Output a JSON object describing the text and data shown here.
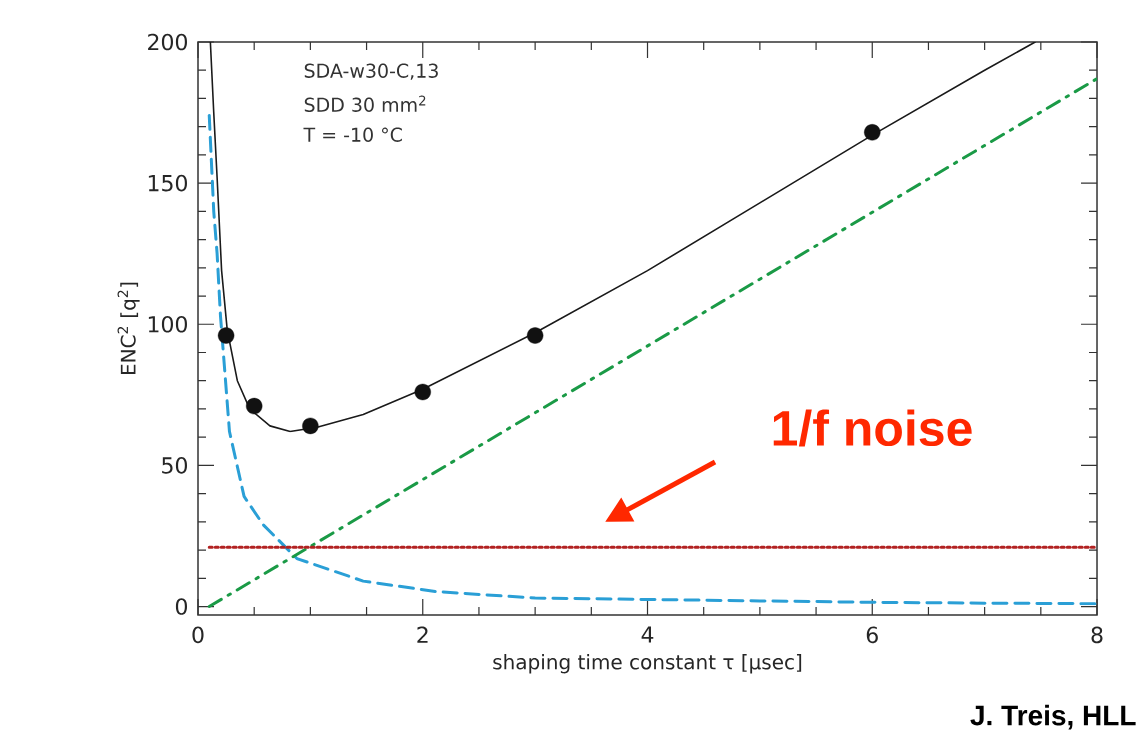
{
  "chart_data": {
    "type": "line",
    "xlabel": "shaping time constant τ [µsec]",
    "ylabel": "ENC$^{2}$ [q$^{2}$]",
    "xlim": [
      0,
      8
    ],
    "ylim": [
      -3,
      200
    ],
    "xticks": [
      0,
      2,
      4,
      6,
      8
    ],
    "yticks": [
      0,
      50,
      100,
      150,
      200
    ],
    "series": [
      {
        "color": "#1a1a1a",
        "line_style": "solid",
        "marker": "none",
        "x": [
          0.11,
          0.14,
          0.17,
          0.21,
          0.26,
          0.35,
          0.46,
          0.64,
          0.82,
          1.06,
          1.47,
          2,
          3,
          4,
          5,
          6,
          7,
          7.45
        ],
        "values": [
          200,
          175,
          152,
          119,
          98,
          80,
          70,
          64,
          62,
          63.5,
          68,
          77,
          97,
          119,
          143,
          167,
          190,
          200
        ]
      },
      {
        "color": "#2a9fd6",
        "line_style": "dashed",
        "marker": "none",
        "x": [
          0.1,
          0.14,
          0.17,
          0.2,
          0.28,
          0.41,
          0.58,
          0.88,
          1.47,
          2.12,
          3,
          4,
          5,
          6,
          7,
          8
        ],
        "values": [
          174,
          140,
          125,
          103,
          62,
          39,
          29,
          17,
          9,
          5.3,
          3,
          2.5,
          2,
          1.5,
          1.2,
          1
        ]
      },
      {
        "color": "#1a9a46",
        "line_style": "dashdotted",
        "marker": "none",
        "x": [
          0.1,
          8
        ],
        "values": [
          0,
          187
        ]
      },
      {
        "color": "#b22222",
        "line_style": "dotted",
        "marker": "none",
        "x": [
          0.1,
          8
        ],
        "values": [
          21,
          21
        ]
      },
      {
        "type": "scatter",
        "color": "#111111",
        "marker": "circle",
        "x": [
          0.25,
          0.5,
          1,
          2,
          3,
          6
        ],
        "values": [
          96,
          71,
          64,
          76,
          96,
          168
        ]
      }
    ],
    "annotations": [
      "SDA-w30-C,13",
      "SDD 30 mm$^{2}$",
      "T = -10 °C",
      "1/f noise",
      "J. Treis, HLL"
    ]
  }
}
